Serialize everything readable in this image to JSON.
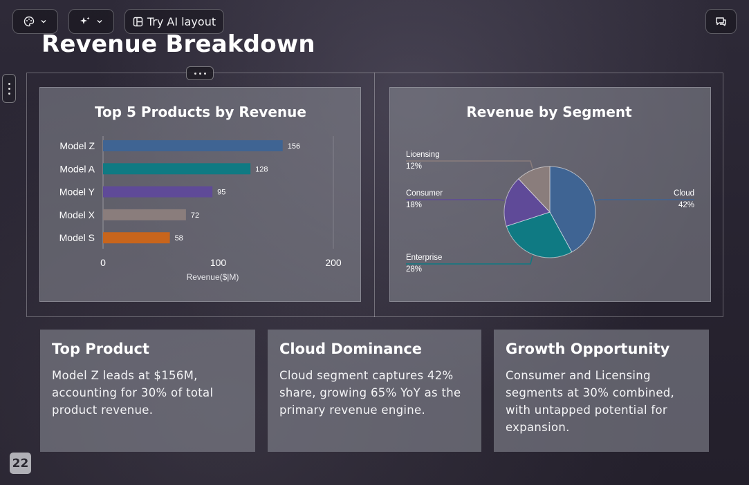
{
  "toolbar": {
    "theme_button": {
      "icon": "palette-icon"
    },
    "ai_button": {
      "icon": "sparkles-icon"
    },
    "try_ai_layout": {
      "label": "Try AI layout",
      "icon": "layout-icon"
    },
    "comments_button": {
      "icon": "comment-icon"
    }
  },
  "slide": {
    "title": "Revenue Breakdown",
    "page_number": "22"
  },
  "chart_data": [
    {
      "type": "bar",
      "orientation": "horizontal",
      "title": "Top 5 Products by Revenue",
      "categories": [
        "Model Z",
        "Model A",
        "Model Y",
        "Model X",
        "Model S"
      ],
      "values": [
        156,
        128,
        95,
        72,
        58
      ],
      "colors": [
        "#3f6493",
        "#0f7a83",
        "#5f4a98",
        "#8a7d7c",
        "#c8651c"
      ],
      "xlabel": "Revenue($|M)",
      "ylabel": "",
      "xlim": [
        0,
        200
      ],
      "xticks": [
        "0",
        "100",
        "200"
      ],
      "grid": false,
      "legend": "none"
    },
    {
      "type": "pie",
      "title": "Revenue by Segment",
      "labels": [
        "Cloud",
        "Enterprise",
        "Consumer",
        "Licensing"
      ],
      "values": [
        42,
        28,
        18,
        12
      ],
      "value_labels": [
        "42%",
        "28%",
        "18%",
        "12%"
      ],
      "colors": [
        "#3f6493",
        "#0f7a83",
        "#5f4a98",
        "#8a7d7c"
      ],
      "legend": "none"
    }
  ],
  "cards": [
    {
      "title": "Top Product",
      "body": "Model Z leads at $156M, accounting for 30% of total product revenue."
    },
    {
      "title": "Cloud Dominance",
      "body": "Cloud segment captures 42% share, growing 65% YoY as the primary revenue engine."
    },
    {
      "title": "Growth Opportunity",
      "body": "Consumer and Licensing segments at 30% combined, with untapped potential for expansion."
    }
  ]
}
